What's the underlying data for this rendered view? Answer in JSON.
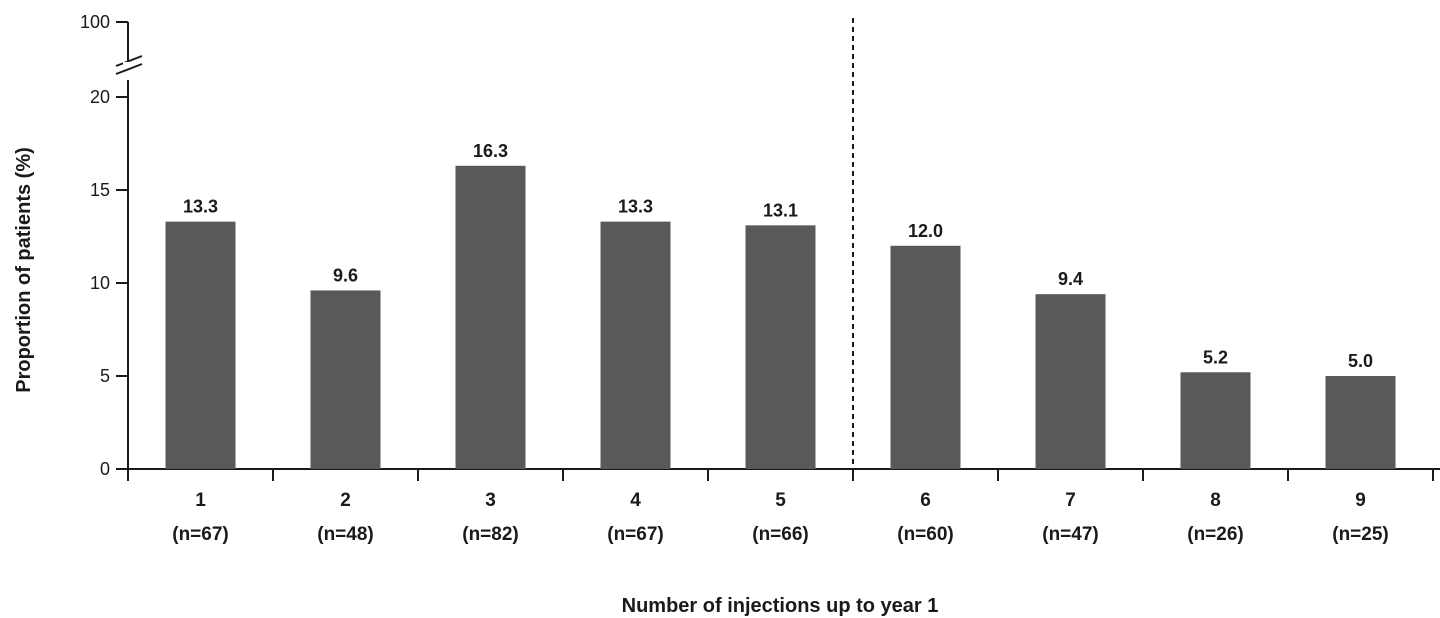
{
  "chart_data": {
    "type": "bar",
    "title": "",
    "xlabel": "Number of injections up to year 1",
    "ylabel": "Proportion of patients (%)",
    "ylim": [
      0,
      20
    ],
    "axis_break": {
      "top_tick": "100",
      "broken_between": [
        20,
        100
      ]
    },
    "yticks": [
      "0",
      "5",
      "10",
      "15",
      "20"
    ],
    "categories": [
      "1",
      "2",
      "3",
      "4",
      "5",
      "6",
      "7",
      "8",
      "9"
    ],
    "n_labels": [
      "(n=67)",
      "(n=48)",
      "(n=82)",
      "(n=67)",
      "(n=66)",
      "(n=60)",
      "(n=47)",
      "(n=26)",
      "(n=25)"
    ],
    "values": [
      13.3,
      9.6,
      16.3,
      13.3,
      13.1,
      12.0,
      9.4,
      5.2,
      5.0
    ],
    "value_labels": [
      "13.3",
      "9.6",
      "16.3",
      "13.3",
      "13.1",
      "12.0",
      "9.4",
      "5.2",
      "5.0"
    ],
    "divider_after_category": "5",
    "bar_color": "#58595b",
    "grid": false,
    "legend": "none"
  }
}
